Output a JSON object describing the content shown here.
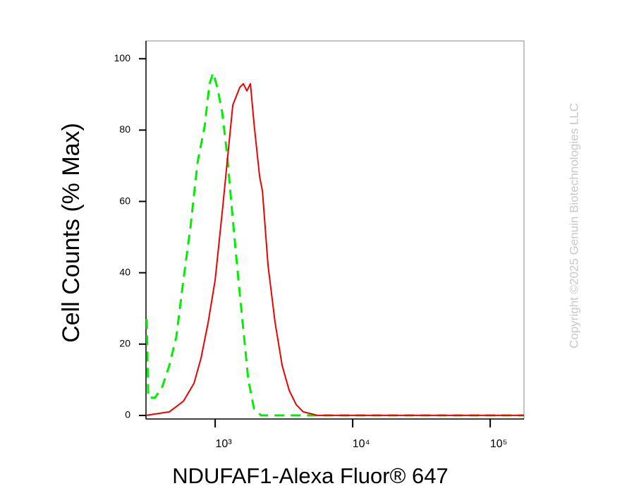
{
  "chart_data": {
    "type": "line",
    "xlabel": "NDUFAF1-Alexa Fluor® 647",
    "ylabel": "Cell Counts (% Max)",
    "watermark": "Copyright ©2025 Genuin Biotechnologies LLC",
    "xscale": "log",
    "xlim": [
      314,
      176000
    ],
    "ylim": [
      -1,
      105
    ],
    "xticks": [
      {
        "value": 1000,
        "label": "10³"
      },
      {
        "value": 10000,
        "label": "10⁴"
      },
      {
        "value": 100000,
        "label": "10⁵"
      }
    ],
    "yticks": [
      0,
      20,
      40,
      60,
      80,
      100
    ],
    "series": [
      {
        "color": "#00ee00",
        "dashed": true,
        "x": [
          318,
          326,
          366,
          412,
          464,
          522,
          588,
          662,
          745,
          838,
          910,
          966,
          1036,
          1125,
          1222,
          1343,
          1477,
          1604,
          1742,
          1914,
          2154,
          2425,
          176000
        ],
        "values": [
          27,
          5,
          5,
          8,
          14,
          22,
          38,
          53,
          71,
          81,
          93,
          96,
          92,
          85,
          73,
          55,
          38,
          24,
          10,
          2,
          0,
          0,
          0
        ]
      },
      {
        "color": "#ee0000",
        "dashed": false,
        "x": [
          314,
          464,
          588,
          702,
          789,
          889,
          1000,
          1125,
          1222,
          1343,
          1511,
          1604,
          1701,
          1804,
          1914,
          2104,
          2207,
          2425,
          2728,
          3070,
          3453,
          3890,
          4375,
          5543,
          176000
        ],
        "values": [
          0,
          1,
          4,
          9,
          16,
          26,
          38,
          57,
          71,
          87,
          92,
          93,
          91,
          93,
          82,
          67,
          63,
          42,
          26,
          14,
          7,
          3,
          1,
          0,
          0
        ]
      }
    ]
  }
}
